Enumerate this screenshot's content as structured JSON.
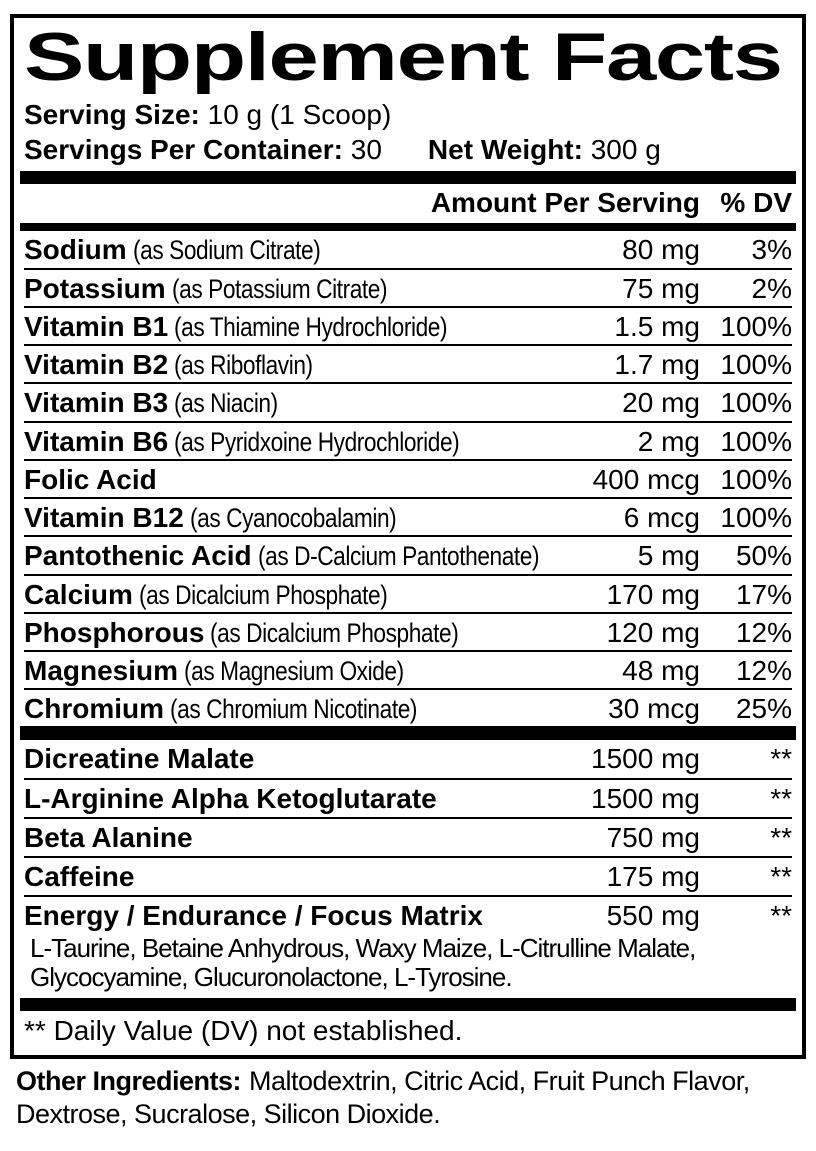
{
  "colors": {
    "ink": "#000000",
    "paper": "#ffffff"
  },
  "panel": {
    "title": "Supplement Facts",
    "serving": {
      "size_label": "Serving Size:",
      "size_value": "10 g (1 Scoop)",
      "per_container_label": "Servings Per Container:",
      "per_container_value": "30",
      "net_weight_label": "Net Weight:",
      "net_weight_value": "300 g"
    },
    "columns": {
      "amount": "Amount Per Serving",
      "dv": "% DV"
    },
    "nutrients": [
      {
        "name": "Sodium",
        "detail": "(as Sodium Citrate)",
        "amount": "80 mg",
        "dv": "3%"
      },
      {
        "name": "Potassium",
        "detail": "(as Potassium Citrate)",
        "amount": "75 mg",
        "dv": "2%"
      },
      {
        "name": "Vitamin B1",
        "detail": "(as Thiamine Hydrochloride)",
        "amount": "1.5 mg",
        "dv": "100%"
      },
      {
        "name": "Vitamin B2",
        "detail": "(as Riboflavin)",
        "amount": "1.7 mg",
        "dv": "100%"
      },
      {
        "name": "Vitamin B3",
        "detail": "(as Niacin)",
        "amount": "20 mg",
        "dv": "100%"
      },
      {
        "name": "Vitamin B6",
        "detail": "(as Pyridxoine Hydrochloride)",
        "amount": "2 mg",
        "dv": "100%"
      },
      {
        "name": "Folic Acid",
        "detail": "",
        "amount": "400 mcg",
        "dv": "100%"
      },
      {
        "name": "Vitamin B12",
        "detail": "(as Cyanocobalamin)",
        "amount": "6 mcg",
        "dv": "100%"
      },
      {
        "name": "Pantothenic Acid",
        "detail": "(as D-Calcium Pantothenate)",
        "amount": "5 mg",
        "dv": "50%"
      },
      {
        "name": "Calcium",
        "detail": "(as Dicalcium Phosphate)",
        "amount": "170 mg",
        "dv": "17%"
      },
      {
        "name": "Phosphorous",
        "detail": "(as Dicalcium Phosphate)",
        "amount": "120 mg",
        "dv": "12%"
      },
      {
        "name": "Magnesium",
        "detail": "(as Magnesium Oxide)",
        "amount": "48 mg",
        "dv": "12%"
      },
      {
        "name": "Chromium",
        "detail": "(as Chromium Nicotinate)",
        "amount": "30 mcg",
        "dv": "25%"
      }
    ],
    "other_actives": [
      {
        "name": "Dicreatine Malate",
        "amount": "1500 mg",
        "dv": "**"
      },
      {
        "name": "L-Arginine Alpha Ketoglutarate",
        "amount": "1500 mg",
        "dv": "**"
      },
      {
        "name": "Beta Alanine",
        "amount": "750 mg",
        "dv": "**"
      },
      {
        "name": "Caffeine",
        "amount": "175 mg",
        "dv": "**"
      },
      {
        "name": "Energy / Endurance / Focus Matrix",
        "amount": "550 mg",
        "dv": "**",
        "sub": "L-Taurine, Betaine Anhydrous, Waxy Maize, L-Citrulline Malate, Glycocyamine, Glucuronolactone, L-Tyrosine."
      }
    ],
    "footnote": "** Daily Value (DV) not established."
  },
  "other_ingredients": {
    "label": "Other Ingredients:",
    "value": "Maltodextrin, Citric Acid, Fruit Punch Flavor, Dextrose, Sucralose, Silicon Dioxide."
  }
}
